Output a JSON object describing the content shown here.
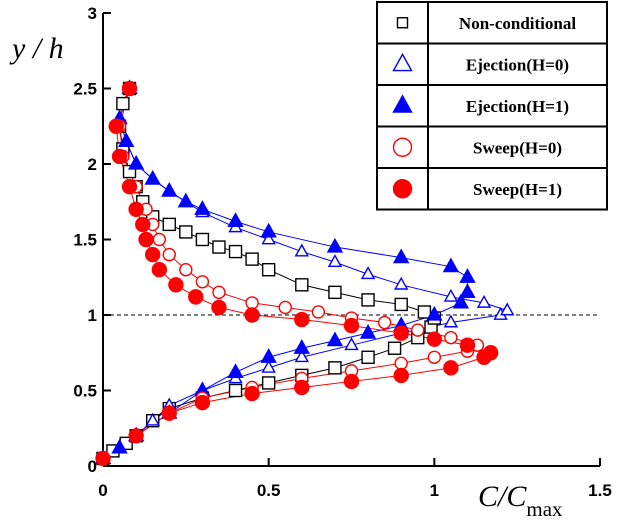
{
  "chart_data": {
    "type": "scatter",
    "ylabel": "y / h",
    "xlabel": "C/C",
    "xlabel_sub": "max",
    "xlim": [
      0,
      1.5
    ],
    "ylim": [
      0,
      3
    ],
    "xticks": [
      0,
      0.5,
      1,
      1.5
    ],
    "yticks": [
      0,
      0.5,
      1,
      1.5,
      2,
      2.5,
      3
    ],
    "hline": 1,
    "legend": "top-right",
    "series": [
      {
        "name": "Non-conditional",
        "color": "#000000",
        "marker": "square",
        "filled": false,
        "x": [
          0.0,
          0.03,
          0.07,
          0.1,
          0.15,
          0.2,
          0.3,
          0.4,
          0.5,
          0.6,
          0.7,
          0.8,
          0.88,
          0.95,
          0.99,
          1.0,
          0.97,
          0.9,
          0.8,
          0.7,
          0.6,
          0.5,
          0.45,
          0.4,
          0.35,
          0.3,
          0.25,
          0.2,
          0.15,
          0.12,
          0.1,
          0.08,
          0.06,
          0.05,
          0.06,
          0.08
        ],
        "values": [
          0.05,
          0.1,
          0.15,
          0.2,
          0.3,
          0.38,
          0.45,
          0.5,
          0.55,
          0.6,
          0.65,
          0.72,
          0.78,
          0.85,
          0.92,
          0.98,
          1.02,
          1.07,
          1.1,
          1.15,
          1.2,
          1.3,
          1.37,
          1.42,
          1.45,
          1.5,
          1.55,
          1.6,
          1.65,
          1.75,
          1.85,
          1.95,
          2.1,
          2.25,
          2.4,
          2.5
        ]
      },
      {
        "name": "Ejection(H=0)",
        "color": "#0000ff",
        "marker": "triangle",
        "filled": false,
        "x": [
          0.0,
          0.05,
          0.1,
          0.15,
          0.2,
          0.3,
          0.4,
          0.5,
          0.6,
          0.75,
          0.9,
          1.05,
          1.2,
          1.22,
          1.15,
          1.05,
          0.9,
          0.8,
          0.7,
          0.6,
          0.5,
          0.4,
          0.3,
          0.25,
          0.2,
          0.15,
          0.1,
          0.07,
          0.05,
          0.08
        ],
        "values": [
          0.05,
          0.12,
          0.2,
          0.3,
          0.4,
          0.5,
          0.58,
          0.65,
          0.72,
          0.8,
          0.88,
          0.95,
          1.0,
          1.03,
          1.08,
          1.12,
          1.2,
          1.27,
          1.35,
          1.42,
          1.5,
          1.58,
          1.68,
          1.75,
          1.82,
          1.9,
          2.0,
          2.15,
          2.3,
          2.5
        ]
      },
      {
        "name": "Ejection(H=1)",
        "color": "#0000ff",
        "marker": "triangle",
        "filled": true,
        "x": [
          0.0,
          0.05,
          0.1,
          0.2,
          0.3,
          0.4,
          0.5,
          0.6,
          0.7,
          0.8,
          0.9,
          1.0,
          1.08,
          1.1,
          1.1,
          1.05,
          0.9,
          0.7,
          0.5,
          0.4,
          0.3,
          0.25,
          0.2,
          0.15,
          0.1,
          0.07,
          0.05,
          0.08
        ],
        "values": [
          0.05,
          0.12,
          0.2,
          0.35,
          0.5,
          0.62,
          0.72,
          0.78,
          0.83,
          0.88,
          0.93,
          1.0,
          1.08,
          1.15,
          1.25,
          1.32,
          1.38,
          1.45,
          1.55,
          1.62,
          1.7,
          1.75,
          1.82,
          1.9,
          2.0,
          2.15,
          2.3,
          2.5
        ]
      },
      {
        "name": "Sweep(H=0)",
        "color": "#ff0000",
        "marker": "circle",
        "filled": false,
        "x": [
          0.0,
          0.1,
          0.2,
          0.3,
          0.45,
          0.6,
          0.75,
          0.9,
          1.0,
          1.1,
          1.13,
          1.05,
          0.95,
          0.85,
          0.75,
          0.65,
          0.55,
          0.45,
          0.35,
          0.3,
          0.25,
          0.2,
          0.17,
          0.15,
          0.13,
          0.1,
          0.06,
          0.05,
          0.08
        ],
        "values": [
          0.05,
          0.2,
          0.35,
          0.45,
          0.52,
          0.58,
          0.63,
          0.68,
          0.72,
          0.76,
          0.8,
          0.85,
          0.9,
          0.95,
          0.98,
          1.02,
          1.05,
          1.08,
          1.15,
          1.22,
          1.3,
          1.4,
          1.5,
          1.6,
          1.7,
          1.85,
          2.05,
          2.25,
          2.5
        ]
      },
      {
        "name": "Sweep(H=1)",
        "color": "#ff0000",
        "marker": "circle",
        "filled": true,
        "x": [
          0.0,
          0.1,
          0.2,
          0.3,
          0.45,
          0.6,
          0.75,
          0.9,
          1.05,
          1.15,
          1.17,
          1.1,
          1.0,
          0.9,
          0.75,
          0.6,
          0.45,
          0.35,
          0.28,
          0.22,
          0.17,
          0.15,
          0.13,
          0.12,
          0.1,
          0.08,
          0.05,
          0.04,
          0.08
        ],
        "values": [
          0.05,
          0.2,
          0.35,
          0.42,
          0.48,
          0.52,
          0.56,
          0.6,
          0.65,
          0.72,
          0.75,
          0.8,
          0.84,
          0.88,
          0.93,
          0.97,
          1.0,
          1.05,
          1.12,
          1.2,
          1.3,
          1.4,
          1.5,
          1.6,
          1.7,
          1.85,
          2.05,
          2.25,
          2.5
        ]
      }
    ]
  }
}
